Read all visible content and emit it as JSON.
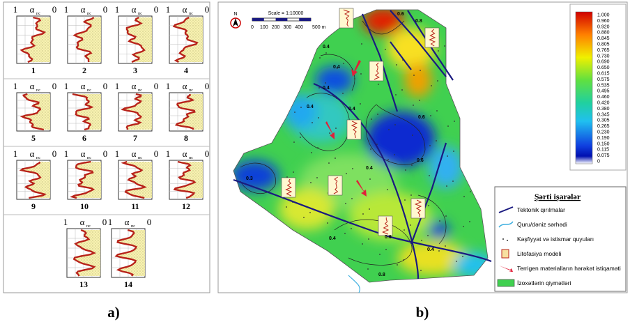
{
  "panel_a": {
    "label": "a)",
    "models": [
      {
        "number": "1",
        "left": "1",
        "symbol": "α",
        "sub": "пс",
        "right": "0"
      },
      {
        "number": "2",
        "left": "1",
        "symbol": "α",
        "sub": "пс",
        "right": "0"
      },
      {
        "number": "3",
        "left": "1",
        "symbol": "α",
        "sub": "пс",
        "right": "0"
      },
      {
        "number": "4",
        "left": "1",
        "symbol": "α",
        "sub": "пс",
        "right": "0"
      },
      {
        "number": "5",
        "left": "1",
        "symbol": "α",
        "sub": "пс",
        "right": "0"
      },
      {
        "number": "6",
        "left": "1",
        "symbol": "α",
        "sub": "пс",
        "right": "0"
      },
      {
        "number": "7",
        "left": "1",
        "symbol": "α",
        "sub": "пс",
        "right": "0"
      },
      {
        "number": "8",
        "left": "1",
        "symbol": "α",
        "sub": "пс",
        "right": "0"
      },
      {
        "number": "9",
        "left": "1",
        "symbol": "α",
        "sub": "пс",
        "right": "0"
      },
      {
        "number": "10",
        "left": "1",
        "symbol": "α",
        "sub": "пс",
        "right": "0"
      },
      {
        "number": "11",
        "left": "1",
        "symbol": "α",
        "sub": "пс",
        "right": "0"
      },
      {
        "number": "12",
        "left": "1",
        "symbol": "α",
        "sub": "пс",
        "right": "0"
      },
      {
        "number": "13",
        "left": "1",
        "symbol": "α",
        "sub": "пс",
        "right": "0"
      },
      {
        "number": "14",
        "left": "1",
        "symbol": "α",
        "sub": "пс",
        "right": "0"
      }
    ]
  },
  "panel_b": {
    "label": "b)",
    "north": "N",
    "scale_title": "Scale = 1:10000",
    "scale_ticks": [
      "0",
      "100",
      "200",
      "300",
      "400",
      "500 m"
    ],
    "contour_labels": [
      "0.6",
      "0.8",
      "0.4",
      "0.4",
      "0.4",
      "0.4",
      "0.4",
      "0.6",
      "0.6",
      "0.4",
      "0.3",
      "0.4",
      "0.4",
      "0.6",
      "0.8"
    ],
    "colorbar_labels": [
      "1.000",
      "0.960",
      "0.920",
      "0.880",
      "0.845",
      "0.805",
      "0.765",
      "0.730",
      "0.690",
      "0.650",
      "0.615",
      "0.575",
      "0.535",
      "0.495",
      "0.460",
      "0.420",
      "0.380",
      "0.345",
      "0.305",
      "0.265",
      "0.230",
      "0.190",
      "0.150",
      "0.115",
      "0.075",
      "0"
    ],
    "legend": {
      "title": "Şərti işarələr",
      "items": [
        "Tektonik qırılmalar",
        "Quru/dəniz sərhədi",
        "Kəşfiyyat və istismar quyuları",
        "Litofasiya modeli",
        "Terrigen materialların hərəkət istiqaməti",
        "İzoxətlərin qiymətləri"
      ]
    }
  }
}
